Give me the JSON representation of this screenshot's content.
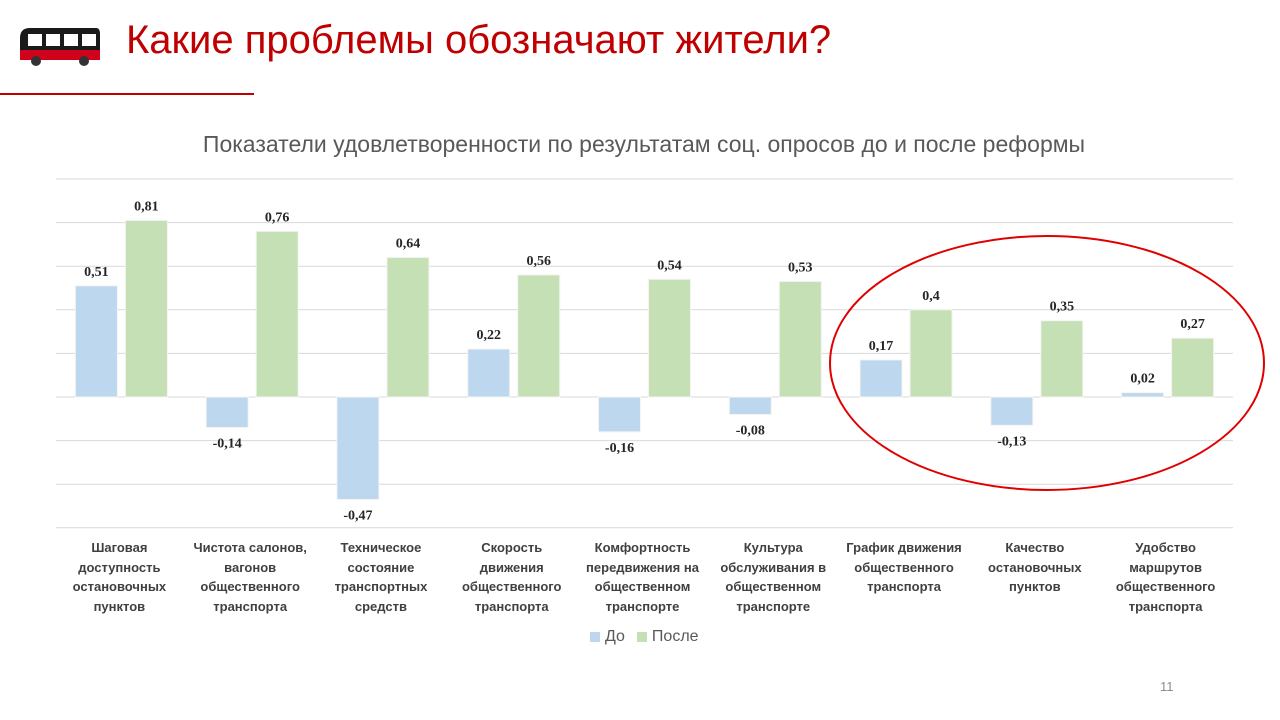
{
  "slide": {
    "title": "Какие проблемы обозначают жители?",
    "page_number": "11",
    "logo_icon": "bus-icon",
    "accent_color": "#c00000"
  },
  "chart_data": {
    "type": "bar",
    "title": "Показатели удовлетворенности по результатам соц. опросов до и после реформы",
    "xlabel": "",
    "ylabel": "",
    "ylim": [
      -0.6,
      1.0
    ],
    "grid": true,
    "legend_position": "bottom",
    "categories": [
      "Шаговая доступность остановочных пунктов",
      "Чистота салонов, вагонов общественного транспорта",
      "Техническое состояние транспортных средств",
      "Скорость движения общественного транспорта",
      "Комфортность передвижения на общественном транспорте",
      "Культура обслуживания в общественном транспорте",
      "График движения общественного транспорта",
      "Качество остановочных пунктов",
      "Удобство маршрутов общественного транспорта"
    ],
    "category_lines": [
      [
        "Шаговая",
        "доступность",
        "остановочных",
        "пунктов"
      ],
      [
        "Чистота салонов,",
        "вагонов",
        "общественного",
        "транспорта"
      ],
      [
        "Техническое",
        "состояние",
        "транспортных",
        "средств"
      ],
      [
        "Скорость",
        "движения",
        "общественного",
        "транспорта"
      ],
      [
        "Комфортность",
        "передвижения на",
        "общественном",
        "транспорте"
      ],
      [
        "Культура",
        "обслуживания в",
        "общественном",
        "транспорте"
      ],
      [
        "График движения",
        "общественного",
        "транспорта"
      ],
      [
        "Качество",
        "остановочных",
        "пунктов"
      ],
      [
        "Удобство",
        "маршрутов",
        "общественного",
        "транспорта"
      ]
    ],
    "series": [
      {
        "name": "До",
        "color": "#bdd7ee",
        "values": [
          0.51,
          -0.14,
          -0.47,
          0.22,
          -0.16,
          -0.08,
          0.17,
          -0.13,
          0.02
        ],
        "labels": [
          "0,51",
          "-0,14",
          "-0,47",
          "0,22",
          "-0,16",
          "-0,08",
          "0,17",
          "-0,13",
          "0,02"
        ]
      },
      {
        "name": "После",
        "color": "#c5e0b4",
        "values": [
          0.81,
          0.76,
          0.64,
          0.56,
          0.54,
          0.53,
          0.4,
          0.35,
          0.27
        ],
        "labels": [
          "0,81",
          "0,76",
          "0,64",
          "0,56",
          "0,54",
          "0,53",
          "0,4",
          "0,35",
          "0,27"
        ]
      }
    ],
    "annotation": {
      "shape": "ellipse",
      "color": "#e00000",
      "highlights": [
        "График движения общественного транспорта",
        "Качество остановочных пунктов",
        "Удобство маршрутов общественного транспорта"
      ]
    }
  }
}
